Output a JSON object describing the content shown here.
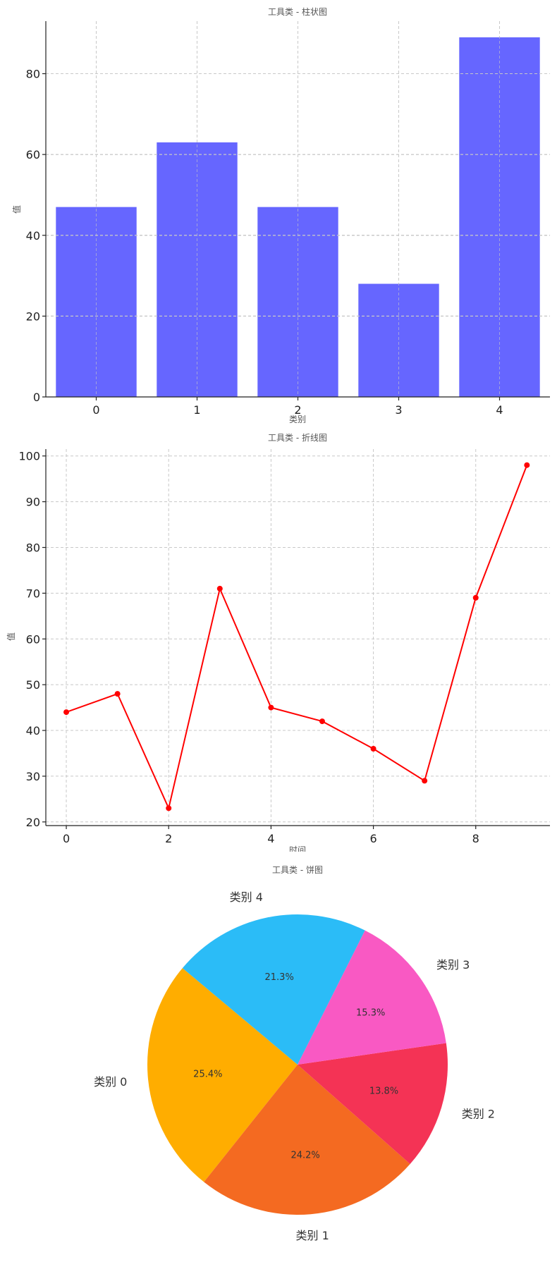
{
  "chart_data": [
    {
      "type": "bar",
      "title": "工具类 - 柱状图",
      "xlabel": "类别",
      "ylabel": "值",
      "categories": [
        "0",
        "1",
        "2",
        "3",
        "4"
      ],
      "values": [
        47,
        63,
        47,
        28,
        89
      ],
      "ylim": [
        0,
        93
      ],
      "yticks": [
        0,
        20,
        40,
        60,
        80
      ],
      "color": "#6666ff",
      "grid": true
    },
    {
      "type": "line",
      "title": "工具类 - 折线图",
      "xlabel": "时间",
      "ylabel": "值",
      "x": [
        0,
        1,
        2,
        3,
        4,
        5,
        6,
        7,
        8,
        9
      ],
      "values": [
        44,
        48,
        23,
        71,
        45,
        42,
        36,
        29,
        69,
        98
      ],
      "xlim": [
        -0.4,
        9.45
      ],
      "ylim": [
        19.2,
        101.5
      ],
      "xticks": [
        0,
        2,
        4,
        6,
        8
      ],
      "yticks": [
        20,
        30,
        40,
        50,
        60,
        70,
        80,
        90,
        100
      ],
      "color": "#ff0000",
      "grid": true
    },
    {
      "type": "pie",
      "title": "工具类 - 饼图",
      "slices": [
        {
          "label": "类别 0",
          "value": 25.4,
          "pct_label": "25.4%",
          "color": "#ffad00"
        },
        {
          "label": "类别 1",
          "value": 24.2,
          "pct_label": "24.2%",
          "color": "#f46a21"
        },
        {
          "label": "类别 2",
          "value": 13.8,
          "pct_label": "13.8%",
          "color": "#f43355"
        },
        {
          "label": "类别 3",
          "value": 15.3,
          "pct_label": "15.3%",
          "color": "#f959c3"
        },
        {
          "label": "类别 4",
          "value": 21.3,
          "pct_label": "21.3%",
          "color": "#2bbcf7"
        }
      ]
    }
  ]
}
